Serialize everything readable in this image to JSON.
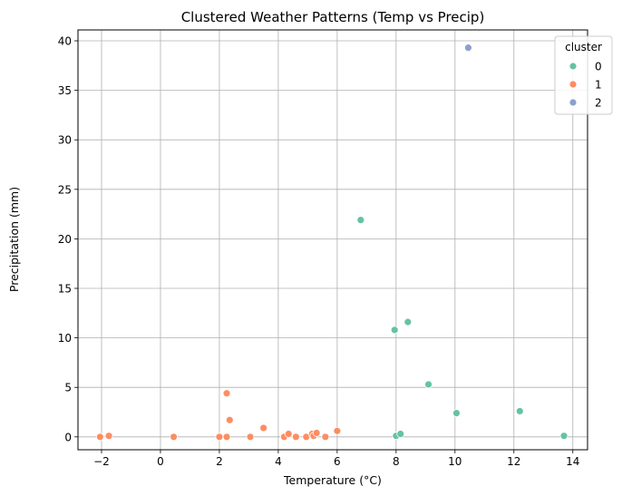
{
  "chart_data": {
    "type": "scatter",
    "title": "Clustered Weather Patterns (Temp vs Precip)",
    "xlabel": "Temperature (°C)",
    "ylabel": "Precipitation (mm)",
    "xlim": [
      -2.8,
      14.5
    ],
    "ylim": [
      -1.3,
      41.1
    ],
    "xticks": [
      -2,
      0,
      2,
      4,
      6,
      8,
      10,
      12,
      14
    ],
    "yticks": [
      0,
      5,
      10,
      15,
      20,
      25,
      30,
      35,
      40
    ],
    "grid": true,
    "legend": {
      "title": "cluster",
      "placement": "top-right"
    },
    "series": [
      {
        "name": "0",
        "color": "#66c2a5",
        "points": [
          {
            "x": 6.8,
            "y": 21.9
          },
          {
            "x": 7.95,
            "y": 10.8
          },
          {
            "x": 8.4,
            "y": 11.6
          },
          {
            "x": 9.1,
            "y": 5.3
          },
          {
            "x": 10.05,
            "y": 2.4
          },
          {
            "x": 12.2,
            "y": 2.6
          },
          {
            "x": 13.7,
            "y": 0.1
          },
          {
            "x": 8.0,
            "y": 0.1
          },
          {
            "x": 8.15,
            "y": 0.3
          }
        ]
      },
      {
        "name": "1",
        "color": "#fc8d62",
        "points": [
          {
            "x": -2.05,
            "y": 0.0
          },
          {
            "x": -1.75,
            "y": 0.1
          },
          {
            "x": 0.45,
            "y": 0.0
          },
          {
            "x": 2.0,
            "y": 0.0
          },
          {
            "x": 2.25,
            "y": 0.0
          },
          {
            "x": 2.25,
            "y": 4.4
          },
          {
            "x": 2.35,
            "y": 1.7
          },
          {
            "x": 3.05,
            "y": 0.0
          },
          {
            "x": 3.5,
            "y": 0.9
          },
          {
            "x": 4.2,
            "y": 0.0
          },
          {
            "x": 4.35,
            "y": 0.3
          },
          {
            "x": 4.6,
            "y": 0.0
          },
          {
            "x": 4.95,
            "y": 0.0
          },
          {
            "x": 5.15,
            "y": 0.3
          },
          {
            "x": 5.2,
            "y": 0.1
          },
          {
            "x": 5.3,
            "y": 0.4
          },
          {
            "x": 5.6,
            "y": 0.0
          },
          {
            "x": 6.0,
            "y": 0.6
          }
        ]
      },
      {
        "name": "2",
        "color": "#8da0cb",
        "points": [
          {
            "x": 10.45,
            "y": 39.3
          }
        ]
      }
    ]
  }
}
